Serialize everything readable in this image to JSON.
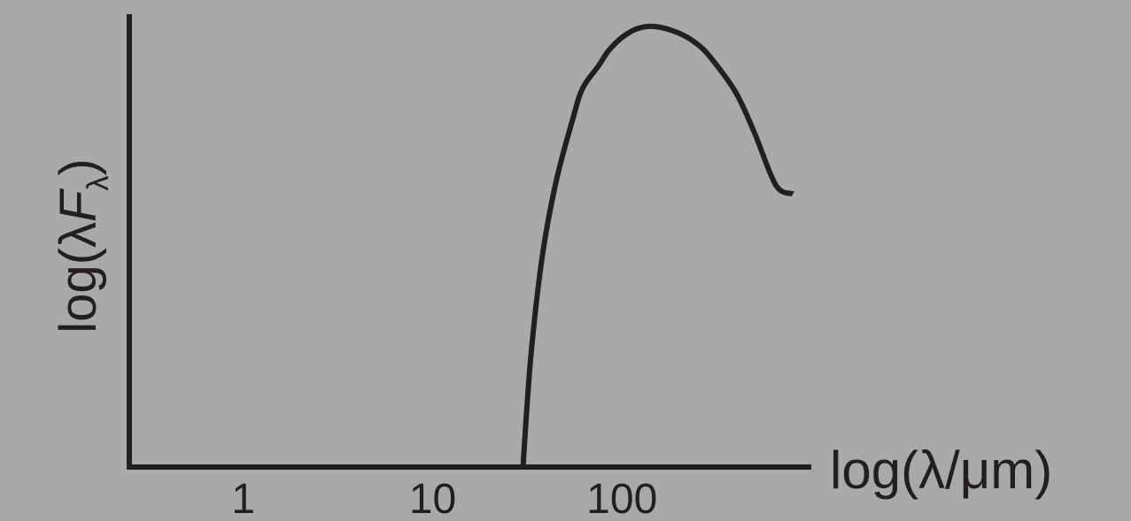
{
  "chart_data": {
    "type": "line",
    "title": "",
    "xlabel": "log(λ/μm)",
    "ylabel": {
      "prefix": "log(λ",
      "symbol": "F",
      "subscript": "λ",
      "suffix": ")"
    },
    "x_scale": "log",
    "x_ticks": [
      {
        "value": 1,
        "label": "1"
      },
      {
        "value": 10,
        "label": "10"
      },
      {
        "value": 100,
        "label": "100"
      }
    ],
    "xlim": [
      0.25,
      1000
    ],
    "ylim": [
      0,
      1
    ],
    "y_ticks_shown": false,
    "grid": false,
    "legend": "none",
    "series": [
      {
        "x": [
          30,
          33,
          38,
          45,
          55,
          62,
          75,
          85,
          100,
          120,
          150,
          200,
          250,
          300,
          400,
          500,
          650,
          800
        ],
        "y": [
          0.0,
          0.25,
          0.48,
          0.65,
          0.79,
          0.86,
          0.91,
          0.945,
          0.975,
          0.995,
          1.0,
          0.985,
          0.96,
          0.925,
          0.85,
          0.76,
          0.64,
          0.62
        ]
      }
    ],
    "colors": {
      "background": "#a9a9a9",
      "ink": "#231f20"
    }
  }
}
